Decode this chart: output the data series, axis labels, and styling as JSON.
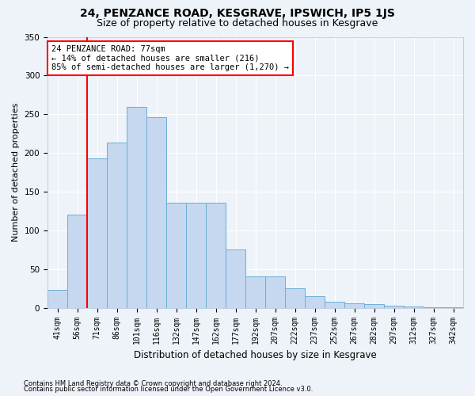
{
  "title": "24, PENZANCE ROAD, KESGRAVE, IPSWICH, IP5 1JS",
  "subtitle": "Size of property relative to detached houses in Kesgrave",
  "xlabel": "Distribution of detached houses by size in Kesgrave",
  "ylabel": "Number of detached properties",
  "categories": [
    "41sqm",
    "56sqm",
    "71sqm",
    "86sqm",
    "101sqm",
    "116sqm",
    "132sqm",
    "147sqm",
    "162sqm",
    "177sqm",
    "192sqm",
    "207sqm",
    "222sqm",
    "237sqm",
    "252sqm",
    "267sqm",
    "282sqm",
    "297sqm",
    "312sqm",
    "327sqm",
    "342sqm"
  ],
  "values": [
    23,
    120,
    193,
    213,
    259,
    246,
    136,
    136,
    136,
    75,
    41,
    41,
    25,
    15,
    8,
    6,
    5,
    3,
    2,
    1,
    1
  ],
  "bar_color": "#c5d8f0",
  "bar_edge_color": "#6baed6",
  "vline_color": "red",
  "annotation_text": "24 PENZANCE ROAD: 77sqm\n← 14% of detached houses are smaller (216)\n85% of semi-detached houses are larger (1,270) →",
  "annotation_box_color": "white",
  "annotation_box_edge": "red",
  "ylim": [
    0,
    350
  ],
  "yticks": [
    0,
    50,
    100,
    150,
    200,
    250,
    300,
    350
  ],
  "footer1": "Contains HM Land Registry data © Crown copyright and database right 2024.",
  "footer2": "Contains public sector information licensed under the Open Government Licence v3.0.",
  "bg_color": "#eef2f9",
  "grid_color": "white",
  "title_fontsize": 10,
  "subtitle_fontsize": 9,
  "ylabel_fontsize": 8,
  "xlabel_fontsize": 8.5,
  "tick_fontsize": 7,
  "footer_fontsize": 6,
  "annotation_fontsize": 7.5
}
